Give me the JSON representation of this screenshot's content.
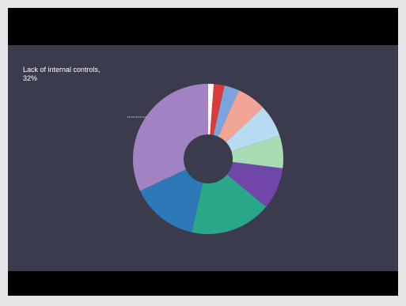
{
  "chart_data": {
    "type": "pie",
    "variant": "donut",
    "title": "",
    "slices": [
      {
        "label": "Lack of internal controls",
        "value": 32,
        "color": "#a182c3"
      },
      {
        "label": "",
        "value": 1.2,
        "color": "#ffffff"
      },
      {
        "label": "",
        "value": 2.3,
        "color": "#d93a3a"
      },
      {
        "label": "",
        "value": 3.2,
        "color": "#7aa4dc"
      },
      {
        "label": "",
        "value": 6.3,
        "color": "#f2a597"
      },
      {
        "label": "",
        "value": 7.0,
        "color": "#b9dbf1"
      },
      {
        "label": "",
        "value": 7.0,
        "color": "#a8dcb3"
      },
      {
        "label": "",
        "value": 9.0,
        "color": "#7046a8"
      },
      {
        "label": "",
        "value": 17.5,
        "color": "#2aa689"
      },
      {
        "label": "",
        "value": 14.5,
        "color": "#2f78b8"
      }
    ],
    "callout": {
      "name": "Lack of internal controls,",
      "value": "32%"
    },
    "legend": "none",
    "background": "#3a3c4e"
  }
}
